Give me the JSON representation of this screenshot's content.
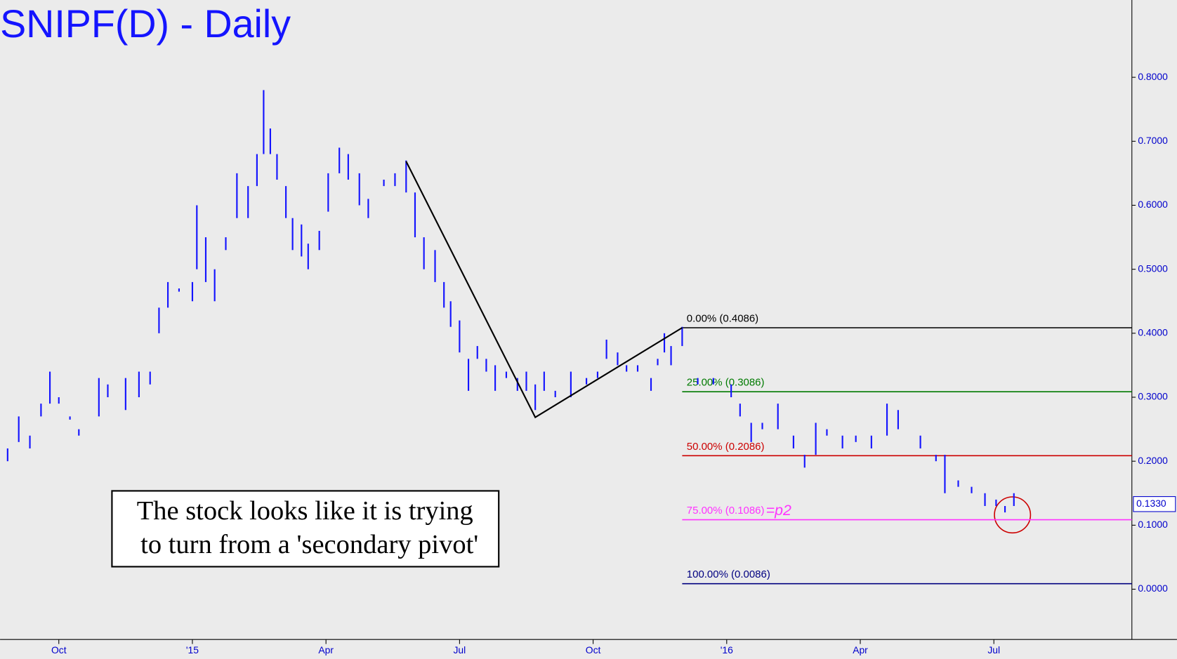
{
  "chart_data": {
    "type": "hilo",
    "title": "SNIPF(D) - Daily",
    "annotation": [
      "The stock looks like it is trying",
      "to turn from a 'secondary pivot'"
    ],
    "color": "#1414ff",
    "x": [
      -1.15,
      -0.9,
      -0.65,
      -0.4,
      -0.2,
      0,
      0.25,
      0.45,
      0.9,
      1.1,
      1.5,
      1.8,
      2.05,
      2.25,
      2.45,
      2.7,
      3.0,
      3.1,
      3.3,
      3.5,
      3.75,
      4.0,
      4.25,
      4.45,
      4.6,
      4.75,
      4.9,
      5.1,
      5.25,
      5.45,
      5.6,
      5.85,
      6.05,
      6.3,
      6.5,
      6.75,
      6.95,
      7.3,
      7.55,
      7.8,
      8.0,
      8.2,
      8.45,
      8.65,
      8.8,
      9.0,
      9.2,
      9.4,
      9.6,
      9.8,
      10.05,
      10.3,
      10.5,
      10.7,
      10.9,
      11.15,
      11.5,
      11.85,
      12.1,
      12.3,
      12.55,
      12.75,
      13.0,
      13.3,
      13.45,
      13.6,
      13.75,
      14.0,
      14.35,
      14.7,
      15.1,
      15.3,
      15.55,
      15.8,
      16.15,
      16.5,
      16.75,
      17.0,
      17.25,
      17.6,
      17.9,
      18.25,
      18.6,
      18.85,
      19.35,
      19.7,
      19.9,
      20.2,
      20.5,
      20.8,
      21.05,
      21.25,
      21.45
    ],
    "high": [
      0.22,
      0.27,
      0.24,
      0.29,
      0.34,
      0.3,
      0.27,
      0.25,
      0.33,
      0.32,
      0.33,
      0.34,
      0.34,
      0.44,
      0.48,
      0.47,
      0.48,
      0.6,
      0.55,
      0.5,
      0.55,
      0.65,
      0.63,
      0.68,
      0.78,
      0.72,
      0.68,
      0.63,
      0.58,
      0.57,
      0.54,
      0.56,
      0.65,
      0.69,
      0.68,
      0.65,
      0.61,
      0.64,
      0.65,
      0.67,
      0.62,
      0.55,
      0.53,
      0.48,
      0.45,
      0.42,
      0.36,
      0.38,
      0.36,
      0.35,
      0.34,
      0.33,
      0.34,
      0.32,
      0.34,
      0.31,
      0.34,
      0.33,
      0.34,
      0.39,
      0.37,
      0.35,
      0.35,
      0.33,
      0.36,
      0.4,
      0.38,
      0.41,
      0.33,
      0.33,
      0.32,
      0.29,
      0.26,
      0.26,
      0.29,
      0.24,
      0.21,
      0.26,
      0.25,
      0.24,
      0.24,
      0.24,
      0.29,
      0.28,
      0.24,
      0.21,
      0.21,
      0.17,
      0.16,
      0.15,
      0.14,
      0.13,
      0.15
    ],
    "low": [
      0.2,
      0.23,
      0.22,
      0.27,
      0.29,
      0.29,
      0.265,
      0.24,
      0.27,
      0.3,
      0.28,
      0.3,
      0.32,
      0.4,
      0.44,
      0.465,
      0.45,
      0.5,
      0.48,
      0.45,
      0.53,
      0.58,
      0.58,
      0.63,
      0.68,
      0.68,
      0.64,
      0.58,
      0.53,
      0.52,
      0.5,
      0.53,
      0.59,
      0.65,
      0.64,
      0.6,
      0.58,
      0.63,
      0.63,
      0.62,
      0.55,
      0.5,
      0.48,
      0.44,
      0.41,
      0.37,
      0.31,
      0.36,
      0.34,
      0.31,
      0.33,
      0.31,
      0.31,
      0.28,
      0.31,
      0.3,
      0.3,
      0.32,
      0.33,
      0.36,
      0.35,
      0.34,
      0.34,
      0.31,
      0.35,
      0.37,
      0.35,
      0.38,
      0.32,
      0.32,
      0.3,
      0.27,
      0.23,
      0.25,
      0.25,
      0.22,
      0.19,
      0.21,
      0.24,
      0.22,
      0.23,
      0.22,
      0.24,
      0.25,
      0.22,
      0.2,
      0.15,
      0.16,
      0.15,
      0.13,
      0.13,
      0.12,
      0.13
    ],
    "swing": {
      "color": "#000000",
      "x": [
        7.8,
        10.7,
        14.0
      ],
      "values": [
        0.6686,
        0.2686,
        0.4086
      ]
    },
    "levels": [
      {
        "label": "0.00% (0.4086)",
        "value": 0.4086,
        "color": "#000000"
      },
      {
        "label": "25.00% (0.3086)",
        "value": 0.3086,
        "color": "#007a00"
      },
      {
        "label": "50.00% (0.2086)",
        "value": 0.2086,
        "color": "#cc0000"
      },
      {
        "label": "75.00% (0.1086)",
        "value": 0.1086,
        "color": "#ff33ff",
        "annotation": "=p2"
      },
      {
        "label": "100.00% (0.0086)",
        "value": 0.0086,
        "color": "#000080"
      }
    ],
    "last_price": {
      "value": 0.133,
      "label": "0.1330"
    },
    "xlim": [
      -1.32,
      24.1
    ],
    "ylim": [
      -0.0786,
      0.9208
    ],
    "xticks": [
      {
        "value": 0,
        "label": "Oct"
      },
      {
        "value": 3,
        "label": "'15"
      },
      {
        "value": 6,
        "label": "Apr"
      },
      {
        "value": 9,
        "label": "Jul"
      },
      {
        "value": 12,
        "label": "Oct"
      },
      {
        "value": 15,
        "label": "'16"
      },
      {
        "value": 18,
        "label": "Apr"
      },
      {
        "value": 21,
        "label": "Jul"
      }
    ],
    "yticks": [
      {
        "value": 0,
        "label": "0.0000"
      },
      {
        "value": 0.1,
        "label": "0.1000"
      },
      {
        "value": 0.2,
        "label": "0.2000"
      },
      {
        "value": 0.3,
        "label": "0.3000"
      },
      {
        "value": 0.4,
        "label": "0.4000"
      },
      {
        "value": 0.5,
        "label": "0.5000"
      },
      {
        "value": 0.6,
        "label": "0.6000"
      },
      {
        "value": 0.7,
        "label": "0.7000"
      },
      {
        "value": 0.8,
        "label": "0.8000"
      }
    ]
  }
}
